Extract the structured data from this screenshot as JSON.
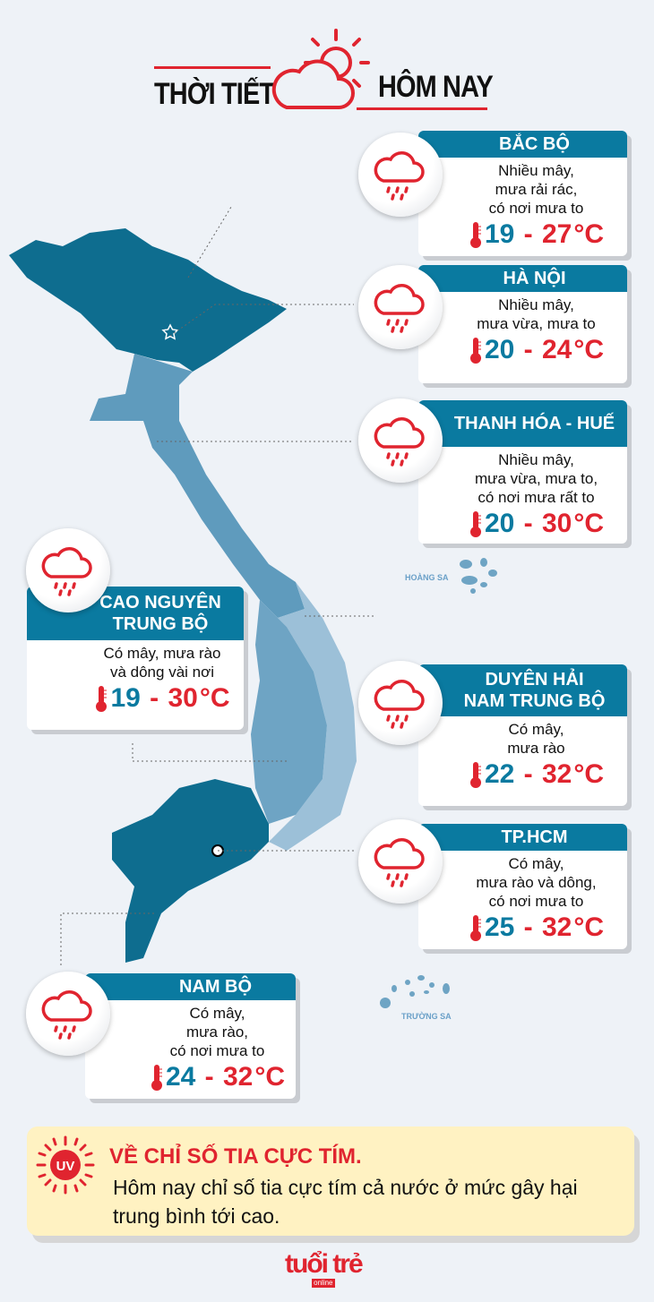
{
  "header": {
    "title_left": "THỜI TIẾT",
    "title_right": "HÔM NAY"
  },
  "colors": {
    "accent_red": "#e0242f",
    "region_blue": "#0a7aa0",
    "map_dark": "#0e6d8f",
    "map_mid": "#5f9bbd",
    "map_light": "#9cc0d8"
  },
  "regions": [
    {
      "name": "BẮC BỘ",
      "desc": [
        "Nhiều mây,",
        "mưa rải rác,",
        "có nơi mưa to"
      ],
      "low": "19",
      "high": "27",
      "unit": "°C",
      "icon": "cloud-rain-icon"
    },
    {
      "name": "HÀ NỘI",
      "desc": [
        "Nhiều mây,",
        "mưa vừa, mưa to"
      ],
      "low": "20",
      "high": "24",
      "unit": "°C",
      "icon": "cloud-rain-icon"
    },
    {
      "name": "THANH HÓA - HUẾ",
      "desc": [
        "Nhiều mây,",
        "mưa vừa, mưa to,",
        "có nơi mưa rất to"
      ],
      "low": "20",
      "high": "30",
      "unit": "°C",
      "icon": "cloud-rain-icon"
    },
    {
      "name": [
        "CAO NGUYÊN",
        "TRUNG BỘ"
      ],
      "desc": [
        "Có mây, mưa rào",
        "và dông vài nơi"
      ],
      "low": "19",
      "high": "30",
      "unit": "°C",
      "icon": "cloud-rain-icon"
    },
    {
      "name": [
        "DUYÊN HẢI",
        "NAM TRUNG BỘ"
      ],
      "desc": [
        "Có mây,",
        "mưa rào"
      ],
      "low": "22",
      "high": "32",
      "unit": "°C",
      "icon": "cloud-rain-icon"
    },
    {
      "name": "TP.HCM",
      "desc": [
        "Có mây,",
        "mưa rào và dông,",
        "có nơi mưa to"
      ],
      "low": "25",
      "high": "32",
      "unit": "°C",
      "icon": "cloud-rain-icon"
    },
    {
      "name": "NAM BỘ",
      "desc": [
        "Có mây,",
        "mưa rào,",
        "có nơi mưa to"
      ],
      "low": "24",
      "high": "32",
      "unit": "°C",
      "icon": "cloud-rain-icon"
    }
  ],
  "islands": {
    "hoang_sa": "HOÀNG SA",
    "truong_sa": "TRƯỜNG SA"
  },
  "uv": {
    "badge": "UV",
    "title": "VỀ CHỈ SỐ TIA CỰC TÍM.",
    "text": "Hôm nay chỉ số tia cực tím cả nước ở mức gây hại trung bình tới cao."
  },
  "logo": {
    "text": "tuổi trẻ",
    "sub": "online"
  }
}
